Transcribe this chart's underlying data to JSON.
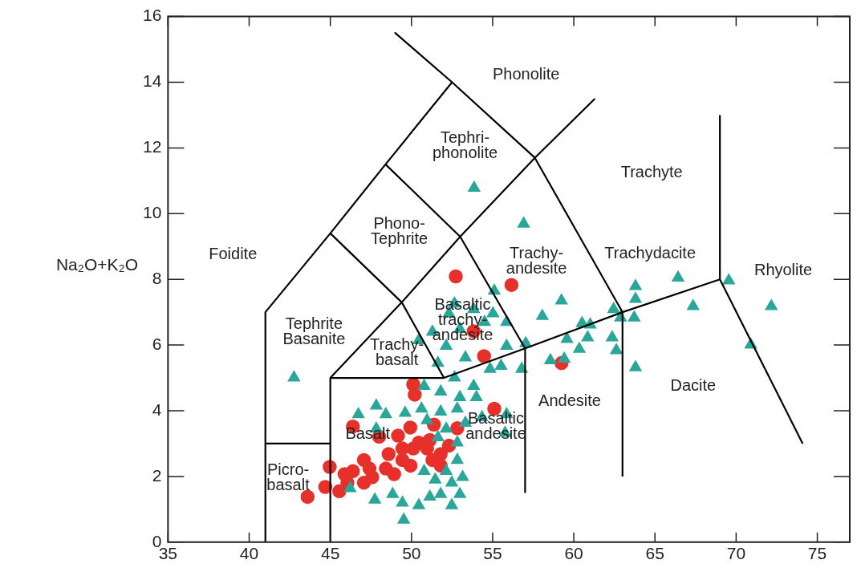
{
  "chart_data": {
    "type": "scatter",
    "ylabel": "Na₂O+K₂O",
    "xlim": [
      35,
      77
    ],
    "ylim": [
      0,
      16
    ],
    "xticks": [
      35,
      40,
      45,
      50,
      55,
      60,
      65,
      70,
      75
    ],
    "yticks": [
      0,
      2,
      4,
      6,
      8,
      10,
      12,
      14,
      16
    ],
    "grid": false,
    "legend": false,
    "series": [
      {
        "type": "line",
        "marker": "none",
        "color": "#000000",
        "x": [
          41,
          41,
          45,
          48.4,
          52.5,
          49,
          52.5,
          57.6,
          63
        ],
        "values": [
          0,
          7,
          9.4,
          11.5,
          14,
          15.5,
          14,
          11.7,
          7
        ]
      },
      {
        "type": "line",
        "marker": "none",
        "color": "#000000",
        "x": [
          41,
          45
        ],
        "values": [
          3,
          3
        ]
      },
      {
        "type": "line",
        "marker": "none",
        "color": "#000000",
        "x": [
          45,
          45,
          51.5,
          52,
          57,
          63,
          69
        ],
        "values": [
          0,
          5,
          5,
          5,
          5.9,
          7,
          8
        ]
      },
      {
        "type": "line",
        "marker": "none",
        "color": "#000000",
        "x": [
          45,
          49.4,
          53,
          57.6,
          61.3
        ],
        "values": [
          5,
          7.3,
          9.3,
          11.7,
          13.5
        ]
      },
      {
        "type": "line",
        "marker": "none",
        "color": "#000000",
        "x": [
          52,
          49.4,
          45
        ],
        "values": [
          5,
          7.3,
          9.4
        ]
      },
      {
        "type": "line",
        "marker": "none",
        "color": "#000000",
        "x": [
          57,
          53,
          48.4
        ],
        "values": [
          5.9,
          9.3,
          11.5
        ]
      },
      {
        "type": "line",
        "marker": "none",
        "color": "#000000",
        "x": [
          57,
          57
        ],
        "values": [
          1.5,
          5.9
        ]
      },
      {
        "type": "line",
        "marker": "none",
        "color": "#000000",
        "x": [
          63,
          63
        ],
        "values": [
          2,
          7
        ]
      },
      {
        "type": "line",
        "marker": "none",
        "color": "#000000",
        "x": [
          69,
          69
        ],
        "values": [
          8,
          13
        ]
      },
      {
        "type": "line",
        "marker": "none",
        "color": "#000000",
        "x": [
          69,
          74.1
        ],
        "values": [
          8,
          3
        ]
      },
      {
        "marker": "triangle",
        "color": "#2aa69a",
        "x": [
          42.76,
          53.86,
          56.91,
          55.1,
          59.24,
          58.06,
          57.04,
          55.86,
          56.79,
          62.45,
          62.88,
          63.8,
          63.8,
          63.72,
          60.51,
          61.01,
          60.85,
          59.58,
          60.34,
          62.36,
          62.62,
          58.56,
          59.41,
          63.8,
          66.42,
          67.35,
          69.55,
          72.17,
          70.9,
          52.65,
          53.83,
          55.02,
          55.86,
          52.31,
          51.29,
          50.45,
          52.98,
          54.5,
          52.14,
          53.32,
          54.84,
          55.52,
          51.63,
          52.65,
          53.83,
          51.8,
          52.98,
          50.78,
          50.62,
          51.8,
          52.82,
          54.0,
          54.34,
          53.32,
          55.86,
          55.77,
          46.73,
          47.83,
          48.42,
          49.61,
          47.83,
          50.96,
          52.14,
          52.82,
          51.63,
          52.82,
          52.14,
          51.46,
          52.48,
          52.98,
          51.8,
          51.13,
          52.48,
          47.74,
          48.84,
          49.44,
          50.45,
          49.52,
          46.22,
          50.78,
          53.15
        ],
        "values": [
          5.01,
          10.78,
          9.69,
          7.65,
          7.35,
          6.88,
          6.05,
          5.97,
          5.27,
          7.09,
          6.83,
          7.79,
          7.4,
          6.83,
          6.66,
          6.62,
          6.23,
          6.18,
          5.88,
          6.23,
          5.84,
          5.53,
          5.58,
          5.32,
          8.05,
          7.18,
          7.96,
          7.18,
          6.01,
          7.26,
          7.09,
          6.96,
          6.7,
          6.96,
          6.4,
          6.14,
          6.49,
          6.7,
          5.97,
          5.62,
          5.27,
          5.36,
          5.45,
          5.01,
          4.75,
          4.58,
          4.41,
          4.75,
          4.06,
          3.97,
          4.06,
          4.41,
          3.8,
          3.63,
          3.89,
          3.32,
          3.89,
          4.15,
          3.89,
          3.93,
          3.45,
          3.71,
          3.45,
          3.03,
          3.19,
          2.5,
          2.16,
          1.9,
          1.81,
          1.46,
          1.46,
          1.38,
          1.12,
          1.29,
          1.46,
          1.2,
          1.12,
          0.68,
          1.64,
          2.16,
          1.98
        ]
      },
      {
        "marker": "circle",
        "color": "#e8302a",
        "x": [
          52.73,
          56.16,
          53.83,
          54.47,
          50.11,
          50.2,
          55.1,
          46.39,
          48.01,
          51.38,
          52.82,
          49.93,
          49.17,
          52.31,
          51.13,
          44.96,
          43.6,
          44.69,
          45.55,
          45.88,
          46.73,
          47.07,
          47.58,
          48.08,
          48.59,
          48.93,
          49.44,
          49.94,
          50.45,
          50.96,
          51.29,
          51.8,
          50.45,
          46.39,
          47.41,
          48.42,
          49.44,
          50.11,
          46.05,
          47.07,
          51.8,
          59.24
        ],
        "values": [
          8.09,
          7.83,
          6.42,
          5.66,
          4.8,
          4.49,
          4.06,
          3.52,
          3.21,
          3.58,
          3.47,
          3.49,
          3.24,
          2.94,
          3.11,
          2.29,
          1.38,
          1.68,
          1.55,
          2.07,
          null,
          2.5,
          1.98,
          null,
          2.68,
          2.07,
          2.5,
          2.33,
          null,
          2.85,
          2.5,
          2.68,
          3.03,
          2.16,
          2.24,
          2.24,
          2.85,
          2.85,
          1.81,
          1.81,
          2.33,
          5.45
        ]
      }
    ],
    "annotations": [
      "Phonolite",
      "Tephri-\nphonolite",
      "Trachyte",
      "Foidite",
      "Phono-\nTephrite",
      "Trachy-\nandesite",
      "Trachydacite",
      "Rhyolite",
      "Tephrite\nBasanite",
      "Trachy-\nbasalt",
      "Basaltic\ntrachy-\nandesite",
      "Andesite",
      "Dacite",
      "Basaltic\nandesite",
      "Basalt",
      "Picro-\nbasalt"
    ]
  }
}
